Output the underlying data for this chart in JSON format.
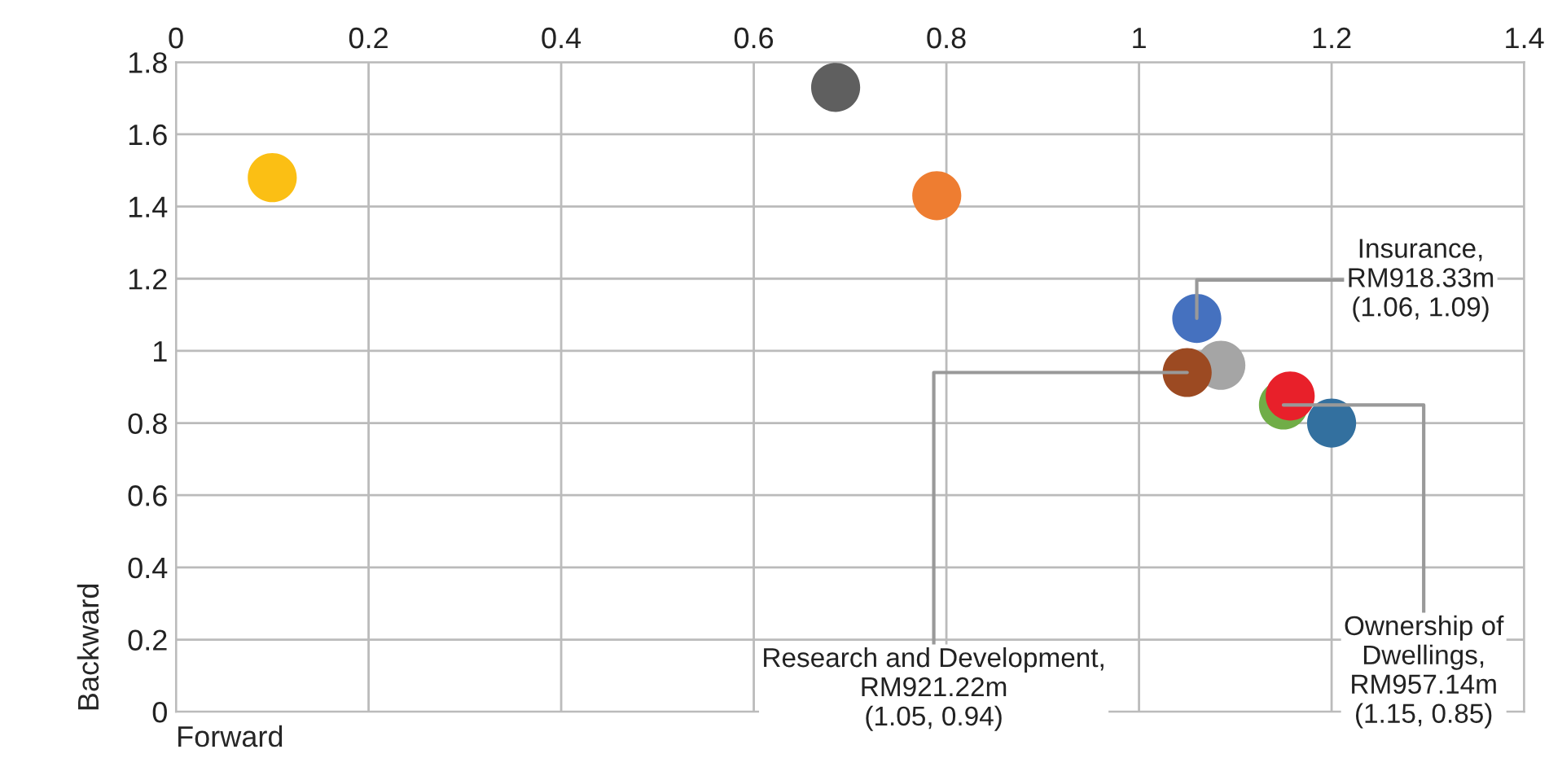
{
  "chart_data": {
    "type": "scatter",
    "xlabel": "Forward",
    "ylabel": "Backward",
    "x": [
      0.1,
      0.685,
      0.79,
      1.06,
      1.085,
      1.05,
      1.15,
      1.2,
      1.157
    ],
    "values": [
      1.48,
      1.73,
      1.43,
      1.09,
      0.96,
      0.94,
      0.85,
      0.8,
      0.875
    ],
    "colors": [
      "#fbbf14",
      "#5f5f5f",
      "#ee7d31",
      "#4571bf",
      "#a5a5a5",
      "#9c4a22",
      "#70ad47",
      "#33709f",
      "#e8202a"
    ],
    "marker": "circle",
    "xlim": [
      0,
      1.4
    ],
    "xticks": [
      0,
      0.2,
      0.4,
      0.6,
      0.8,
      1,
      1.2,
      1.4
    ],
    "ylim": [
      0,
      1.8
    ],
    "yticks": [
      0,
      0.2,
      0.4,
      0.6,
      0.8,
      1,
      1.2,
      1.4,
      1.6,
      1.8
    ],
    "grid": true,
    "annotations": [
      {
        "text": "Insurance,\nRM918.33m\n(1.06, 1.09)",
        "x": 1.06,
        "y": 1.09
      },
      {
        "text": "Research and Development,\nRM921.22m\n(1.05, 0.94)",
        "x": 1.05,
        "y": 0.94
      },
      {
        "text": "Ownership of\nDwellings,\nRM957.14m\n(1.15, 0.85)",
        "x": 1.15,
        "y": 0.85
      }
    ]
  }
}
